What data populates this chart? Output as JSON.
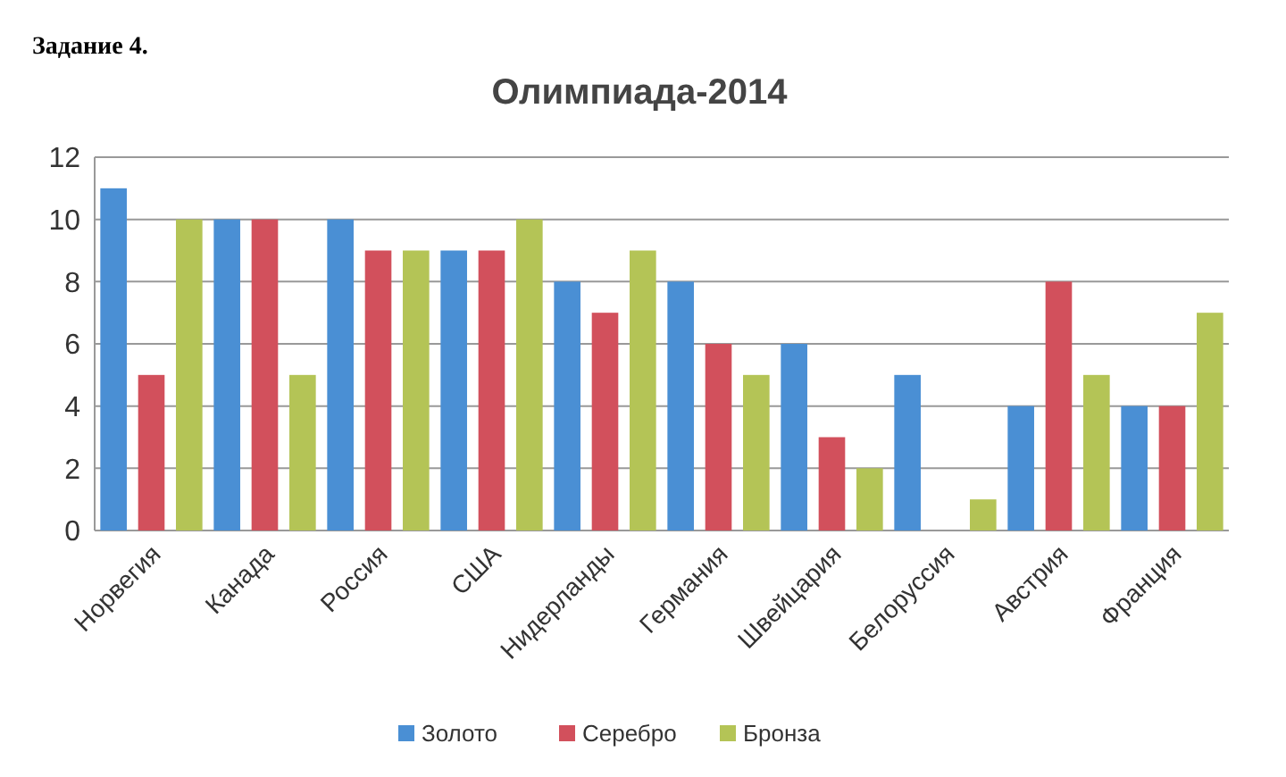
{
  "chart_data": {
    "type": "bar",
    "title": "Олимпиада-2014",
    "annotations": [
      "Задание 4."
    ],
    "categories": [
      "Норвегия",
      "Канада",
      "Россия",
      "США",
      "Нидерланды",
      "Германия",
      "Швейцария",
      "Белоруссия",
      "Австрия",
      "Франция"
    ],
    "series": [
      {
        "name": "Золото",
        "color": "#4a8fd4",
        "values": [
          11,
          10,
          10,
          9,
          8,
          8,
          6,
          5,
          4,
          4
        ]
      },
      {
        "name": "Серебро",
        "color": "#d2505c",
        "values": [
          5,
          10,
          9,
          9,
          7,
          6,
          3,
          0,
          8,
          4
        ]
      },
      {
        "name": "Бронза",
        "color": "#b4c456",
        "values": [
          10,
          5,
          9,
          10,
          9,
          5,
          2,
          1,
          5,
          7
        ]
      }
    ],
    "ylim": [
      0,
      12
    ],
    "yticks": [
      0,
      2,
      4,
      6,
      8,
      10,
      12
    ],
    "grid": "y",
    "legend": "bottom"
  }
}
